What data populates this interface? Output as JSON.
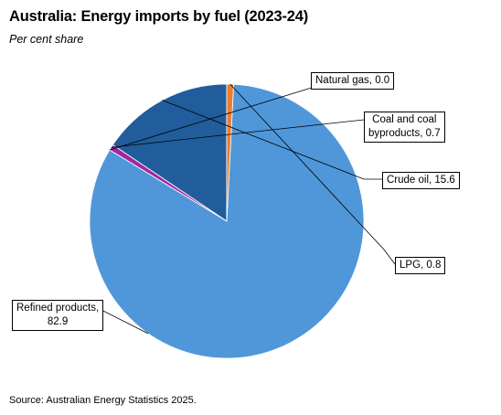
{
  "title": "Australia: Energy imports by fuel (2023-24)",
  "subtitle": "Per cent share",
  "source": "Source: Australian Energy Statistics 2025.",
  "chart_data": {
    "type": "pie",
    "legend": "none",
    "start_angle_deg": 90,
    "direction": "counterclockwise",
    "slices": [
      {
        "name": "Crude oil",
        "value": 15.6,
        "color": "#215d9c",
        "label_lines": [
          "Crude oil, 15.6"
        ]
      },
      {
        "name": "Coal and coal byproducts",
        "value": 0.7,
        "color": "#a0299f",
        "label_lines": [
          "Coal and coal",
          "byproducts, 0.7"
        ]
      },
      {
        "name": "Natural gas",
        "value": 0.0,
        "color": "#7f7f7f",
        "label_lines": [
          "Natural gas, 0.0"
        ]
      },
      {
        "name": "Refined products",
        "value": 82.9,
        "color": "#4f97d9",
        "label_lines": [
          "Refined products,",
          "82.9"
        ]
      },
      {
        "name": "LPG",
        "value": 0.8,
        "color": "#ed7d31",
        "label_lines": [
          "LPG, 0.8"
        ]
      }
    ]
  }
}
